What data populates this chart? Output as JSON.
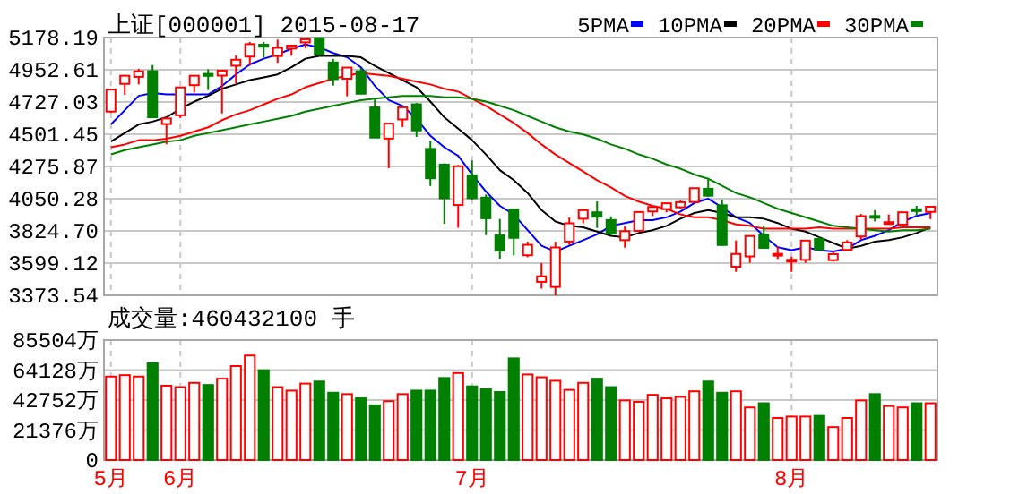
{
  "chart_data": [
    {
      "type": "candlestick",
      "title": "上证[000001] 2015-08-17",
      "categories": [
        null,
        null,
        null,
        null,
        null,
        null,
        null,
        null,
        null,
        null,
        null,
        null,
        null,
        null,
        null,
        null,
        null,
        null,
        null,
        null,
        null,
        null,
        null,
        null,
        null,
        null,
        null,
        null,
        null,
        null,
        null,
        null,
        null,
        null,
        null,
        null,
        null,
        null,
        null,
        null,
        null,
        null,
        null,
        null,
        null,
        null,
        null,
        null,
        null,
        null,
        null,
        null,
        null,
        null,
        null,
        null,
        null,
        null,
        null,
        null
      ],
      "ohlc": [
        [
          4660,
          4814,
          4651,
          4814
        ],
        [
          4854,
          4911,
          4777,
          4911
        ],
        [
          4903,
          4959,
          4850,
          4942
        ],
        [
          4943,
          4986,
          4614,
          4620
        ],
        [
          4573,
          4622,
          4431,
          4612
        ],
        [
          4634,
          4829,
          4615,
          4829
        ],
        [
          4845,
          4911,
          4794,
          4911
        ],
        [
          4924,
          4956,
          4811,
          4910
        ],
        [
          4912,
          4948,
          4647,
          4947
        ],
        [
          4981,
          5052,
          4857,
          5023
        ],
        [
          5045,
          5147,
          4982,
          5132
        ],
        [
          5128,
          5147,
          5039,
          5114
        ],
        [
          5049,
          5164,
          5001,
          5106
        ],
        [
          5101,
          5122,
          5051,
          5122
        ],
        [
          5144,
          5178.19,
          5104,
          5166
        ],
        [
          5174,
          5176,
          5048,
          5063
        ],
        [
          5004,
          5029,
          4842,
          4887
        ],
        [
          4890,
          4968,
          4767,
          4968
        ],
        [
          4942,
          4967,
          4780,
          4785
        ],
        [
          4689,
          4745,
          4476,
          4478
        ],
        [
          4471,
          4577,
          4264,
          4576
        ],
        [
          4605,
          4691,
          4552,
          4690
        ],
        [
          4711,
          4720,
          4483,
          4528
        ],
        [
          4399,
          4456,
          4139,
          4193
        ],
        [
          4289,
          4297,
          3875,
          4053
        ],
        [
          4006,
          4287,
          3847,
          4277
        ],
        [
          4214,
          4318,
          4043,
          4054
        ],
        [
          4058,
          4080,
          3795,
          3913
        ],
        [
          3793,
          3908,
          3630,
          3687
        ],
        [
          3975,
          3976,
          3653,
          3776
        ],
        [
          3654,
          3749,
          3640,
          3727
        ],
        [
          3468,
          3600,
          3421,
          3507
        ],
        [
          3432,
          3749,
          3373.54,
          3709
        ],
        [
          3750,
          3918,
          3725,
          3878
        ],
        [
          3910,
          3975,
          3878,
          3970
        ],
        [
          3955,
          4031,
          3845,
          3924
        ],
        [
          3901,
          3927,
          3792,
          3806
        ],
        [
          3760,
          3856,
          3707,
          3823
        ],
        [
          3825,
          3957,
          3825,
          3957
        ],
        [
          3961,
          3999,
          3929,
          3992
        ],
        [
          3977,
          4022,
          3955,
          4018
        ],
        [
          3990,
          4037,
          3982,
          4026
        ],
        [
          4027,
          4124,
          4023,
          4124
        ],
        [
          4120,
          4184,
          4064,
          4071
        ],
        [
          4004,
          4042,
          3719,
          3726
        ],
        [
          3574,
          3758,
          3538,
          3663
        ],
        [
          3646,
          3789,
          3601,
          3789
        ],
        [
          3800,
          3860,
          3705,
          3706
        ],
        [
          3655,
          3716,
          3628,
          3664
        ],
        [
          3614,
          3644,
          3538,
          3623
        ],
        [
          3622,
          3760,
          3601,
          3757
        ],
        [
          3768,
          3783,
          3693,
          3695
        ],
        [
          3620,
          3679,
          3610,
          3662
        ],
        [
          3692,
          3760,
          3692,
          3744
        ],
        [
          3786,
          3943,
          3764,
          3928
        ],
        [
          3929,
          3970,
          3891,
          3928
        ],
        [
          3881,
          3940,
          3868,
          3886
        ],
        [
          3869,
          3955,
          3858,
          3955
        ],
        [
          3976,
          4000,
          3930,
          3965
        ],
        [
          3958,
          3994,
          3907,
          3994
        ]
      ],
      "series": [
        {
          "name": "5PMA",
          "type": "line",
          "color": "#0000ff",
          "values": [
            4570,
            4670,
            4770,
            4790,
            4780,
            4780,
            4780,
            4780,
            4840,
            4920,
            4990,
            5030,
            5060,
            5100,
            5130,
            5110,
            5070,
            5040,
            4970,
            4840,
            4740,
            4700,
            4610,
            4490,
            4410,
            4350,
            4220,
            4100,
            4000,
            3940,
            3830,
            3720,
            3680,
            3720,
            3760,
            3800,
            3860,
            3880,
            3900,
            3900,
            3920,
            3960,
            4020,
            4050,
            3990,
            3920,
            3880,
            3790,
            3710,
            3690,
            3710,
            3690,
            3680,
            3700,
            3760,
            3790,
            3830,
            3890,
            3930,
            3950
          ]
        },
        {
          "name": "10PMA",
          "type": "line",
          "color": "#000000",
          "values": [
            4450,
            4510,
            4570,
            4590,
            4620,
            4680,
            4730,
            4770,
            4820,
            4850,
            4880,
            4900,
            4920,
            4970,
            5030,
            5050,
            5050,
            5050,
            5040,
            4980,
            4930,
            4880,
            4830,
            4730,
            4620,
            4540,
            4460,
            4360,
            4250,
            4180,
            4090,
            3970,
            3890,
            3860,
            3850,
            3820,
            3790,
            3780,
            3810,
            3830,
            3860,
            3910,
            3950,
            3970,
            3950,
            3920,
            3920,
            3910,
            3880,
            3840,
            3820,
            3780,
            3740,
            3700,
            3720,
            3750,
            3760,
            3780,
            3810,
            3850
          ]
        },
        {
          "name": "20PMA",
          "type": "line",
          "color": "#ff0000",
          "values": [
            4410,
            4430,
            4460,
            4460,
            4470,
            4490,
            4520,
            4550,
            4600,
            4640,
            4670,
            4710,
            4750,
            4780,
            4830,
            4860,
            4890,
            4910,
            4930,
            4920,
            4910,
            4890,
            4870,
            4850,
            4820,
            4800,
            4750,
            4700,
            4640,
            4580,
            4510,
            4430,
            4360,
            4300,
            4240,
            4180,
            4130,
            4070,
            4030,
            4000,
            3980,
            3940,
            3920,
            3920,
            3900,
            3870,
            3860,
            3840,
            3840,
            3840,
            3840,
            3850,
            3840,
            3840,
            3840,
            3840,
            3840,
            3850,
            3850,
            3850
          ]
        },
        {
          "name": "30PMA",
          "type": "line",
          "color": "#008000",
          "values": [
            4360,
            4390,
            4410,
            4430,
            4450,
            4460,
            4490,
            4510,
            4530,
            4550,
            4570,
            4590,
            4610,
            4630,
            4660,
            4680,
            4700,
            4720,
            4740,
            4750,
            4760,
            4770,
            4770,
            4770,
            4760,
            4760,
            4750,
            4730,
            4700,
            4670,
            4630,
            4590,
            4550,
            4520,
            4500,
            4470,
            4430,
            4400,
            4360,
            4330,
            4290,
            4260,
            4220,
            4190,
            4140,
            4090,
            4060,
            4020,
            3980,
            3950,
            3920,
            3890,
            3860,
            3850,
            3840,
            3830,
            3820,
            3830,
            3830,
            3840
          ]
        }
      ],
      "ylim": [
        3373.54,
        5178.19
      ],
      "yticks": [
        {
          "value": 3373.54,
          "label": "3373.54"
        },
        {
          "value": 3599.12,
          "label": "3599.12"
        },
        {
          "value": 3824.7,
          "label": "3824.70"
        },
        {
          "value": 4050.28,
          "label": "4050.28"
        },
        {
          "value": 4275.87,
          "label": "4275.87"
        },
        {
          "value": 4501.45,
          "label": "4501.45"
        },
        {
          "value": 4727.03,
          "label": "4727.03"
        },
        {
          "value": 4952.61,
          "label": "4952.61"
        },
        {
          "value": 5178.19,
          "label": "5178.19"
        }
      ],
      "grid": true,
      "legend": "top right",
      "tick_labels": "y"
    },
    {
      "type": "bar",
      "title": "成交量:460432100 手",
      "categories": [
        "5月",
        null,
        null,
        null,
        null,
        "6月",
        null,
        null,
        null,
        null,
        null,
        null,
        null,
        null,
        null,
        null,
        null,
        null,
        null,
        null,
        null,
        null,
        null,
        null,
        null,
        null,
        "7月",
        null,
        null,
        null,
        null,
        null,
        null,
        null,
        null,
        null,
        null,
        null,
        null,
        null,
        null,
        null,
        null,
        null,
        null,
        null,
        null,
        null,
        null,
        "8月",
        null,
        null,
        null,
        null,
        null,
        null,
        null,
        null,
        null,
        null
      ],
      "values": [
        59500,
        60500,
        59500,
        69000,
        53000,
        52000,
        55000,
        53500,
        58000,
        67000,
        74500,
        64000,
        52000,
        49500,
        54500,
        56000,
        48000,
        47000,
        44000,
        39000,
        42000,
        47000,
        49500,
        49500,
        58500,
        62000,
        52500,
        50500,
        48500,
        72500,
        61000,
        59000,
        56500,
        50000,
        55000,
        58000,
        52000,
        42500,
        41500,
        46500,
        44000,
        45000,
        49000,
        56000,
        48000,
        49000,
        37500,
        40500,
        30000,
        31000,
        31000,
        31500,
        23500,
        30000,
        42500,
        47000,
        38500,
        37500,
        40500,
        40500
      ],
      "colors": [
        "#ff0000",
        "#ff0000",
        "#ff0000",
        "#008000",
        "#ff0000",
        "#ff0000",
        "#ff0000",
        "#008000",
        "#ff0000",
        "#ff0000",
        "#ff0000",
        "#008000",
        "#ff0000",
        "#ff0000",
        "#ff0000",
        "#008000",
        "#008000",
        "#ff0000",
        "#008000",
        "#008000",
        "#ff0000",
        "#ff0000",
        "#008000",
        "#008000",
        "#008000",
        "#ff0000",
        "#008000",
        "#008000",
        "#008000",
        "#008000",
        "#ff0000",
        "#ff0000",
        "#ff0000",
        "#ff0000",
        "#ff0000",
        "#008000",
        "#008000",
        "#ff0000",
        "#ff0000",
        "#ff0000",
        "#ff0000",
        "#ff0000",
        "#ff0000",
        "#008000",
        "#008000",
        "#ff0000",
        "#ff0000",
        "#008000",
        "#ff0000",
        "#ff0000",
        "#ff0000",
        "#008000",
        "#ff0000",
        "#ff0000",
        "#ff0000",
        "#008000",
        "#ff0000",
        "#ff0000",
        "#008000",
        "#ff0000"
      ],
      "ylim": [
        0,
        85504
      ],
      "yticks": [
        0,
        {
          "value": 21376,
          "label": "21376万"
        },
        {
          "value": 42752,
          "label": "42752万"
        },
        {
          "value": 64128,
          "label": "64128万"
        },
        {
          "value": 85504,
          "label": "85504万"
        }
      ],
      "grid": true
    }
  ]
}
